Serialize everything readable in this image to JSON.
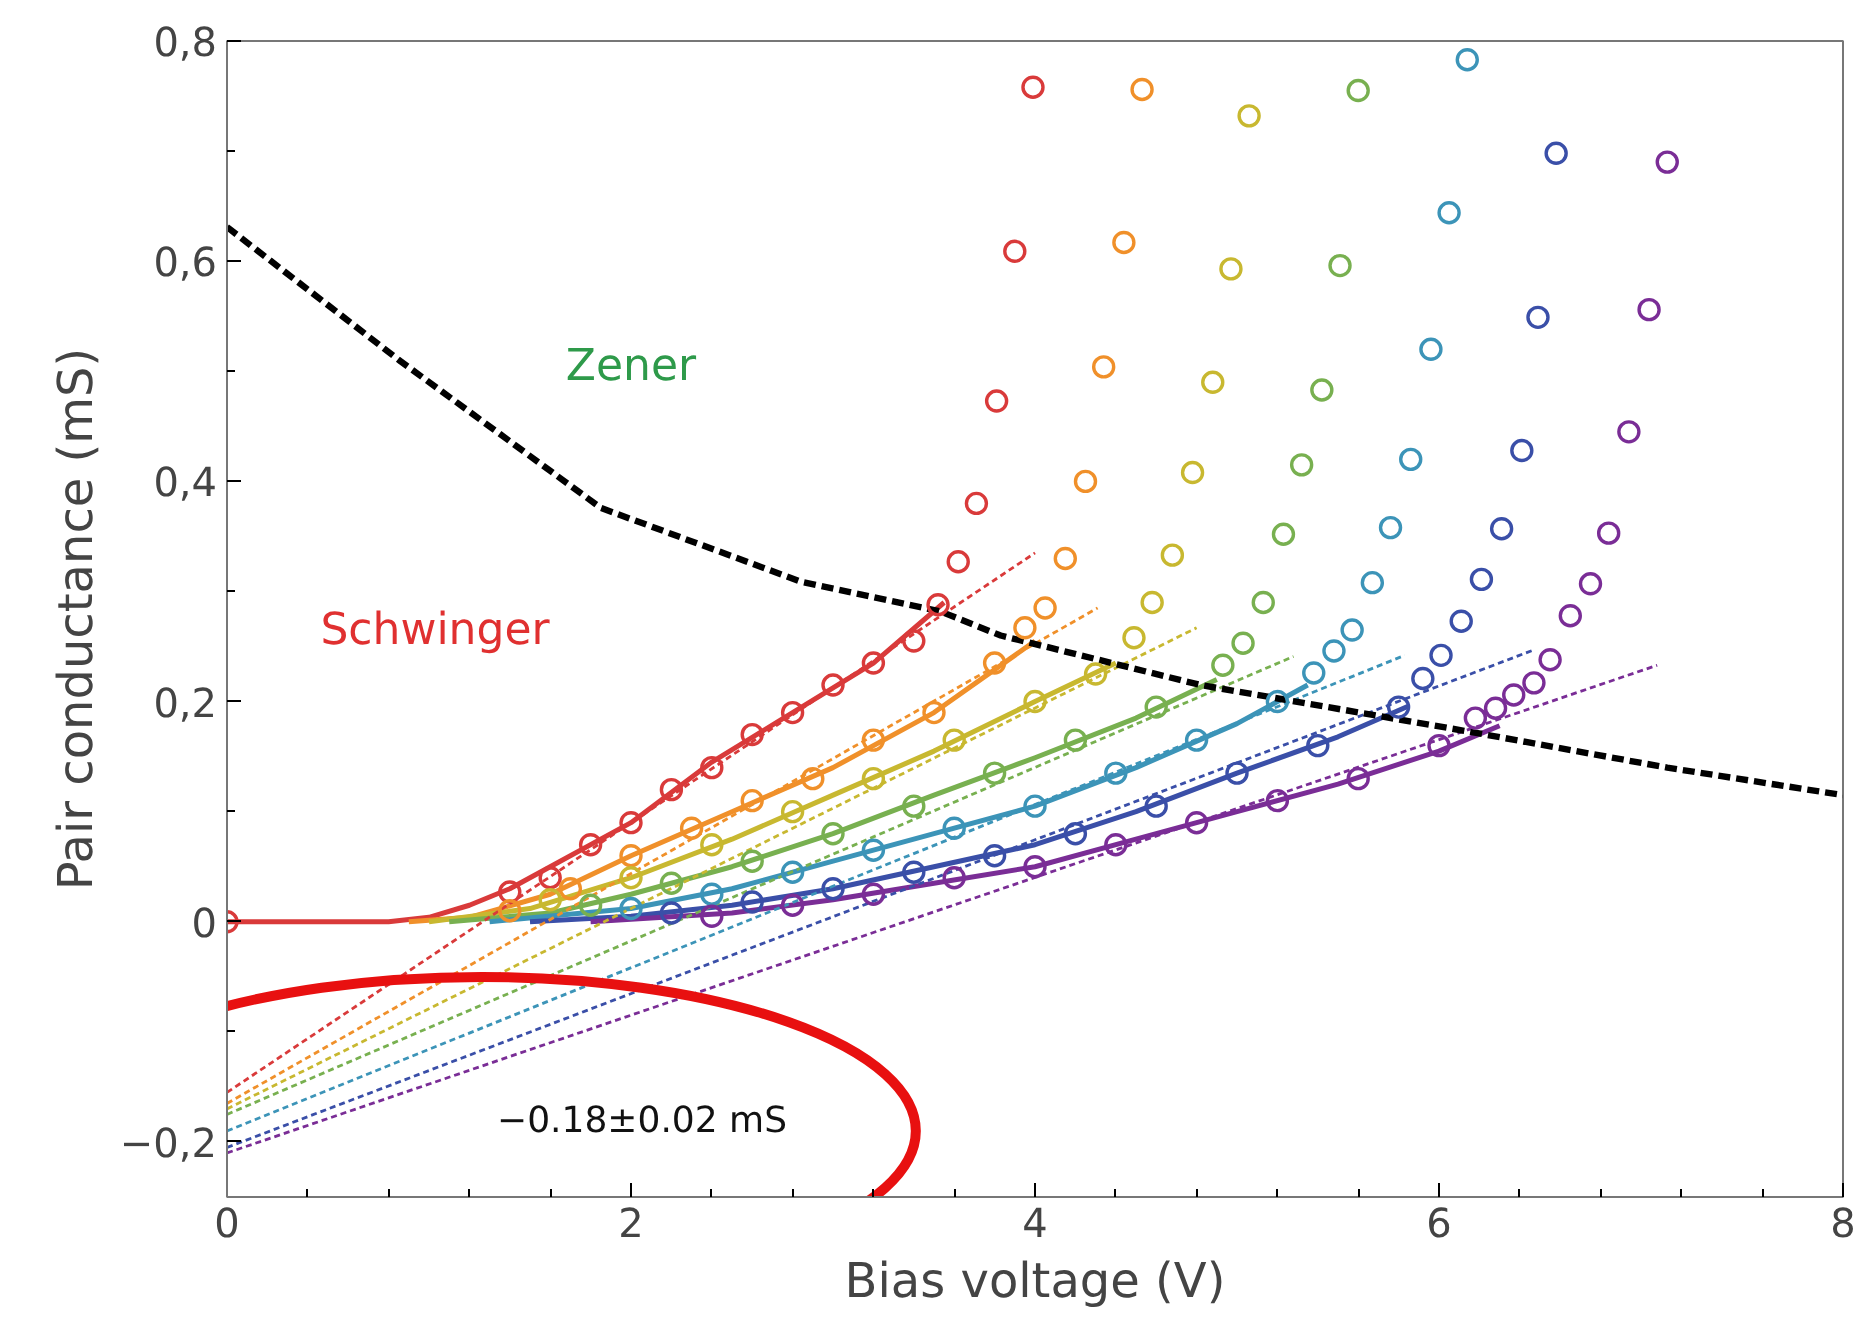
{
  "chart_data": {
    "type": "scatter",
    "xlabel": "Bias voltage (V)",
    "ylabel": "Pair conductance (mS)",
    "xlim": [
      0,
      8
    ],
    "ylim": [
      -0.25,
      0.8
    ],
    "xticks": [
      0,
      2,
      4,
      6,
      8
    ],
    "yticks": [
      {
        "value": -0.2,
        "label": "−0,2"
      },
      0,
      {
        "value": 0.2,
        "label": "0,2"
      },
      {
        "value": 0.4,
        "label": "0,4"
      },
      {
        "value": 0.6,
        "label": "0,6"
      },
      {
        "value": 0.8,
        "label": "0,8"
      }
    ],
    "marker": "circle",
    "annotations": [
      "Zener",
      "Schwinger",
      "−0.18±0.02 mS"
    ],
    "series": [
      {
        "color": "#d93a3a",
        "x": [
          0,
          1.4,
          1.6,
          1.8,
          2.0,
          2.2,
          2.4,
          2.6,
          2.8,
          3.0,
          3.2,
          3.4,
          3.52,
          3.62,
          3.71,
          3.81,
          3.9,
          3.99
        ],
        "values": [
          0,
          0.027,
          0.04,
          0.07,
          0.09,
          0.12,
          0.14,
          0.17,
          0.19,
          0.215,
          0.235,
          0.255,
          0.288,
          0.327,
          0.38,
          0.473,
          0.609,
          0.758
        ]
      },
      {
        "color": "#f0902a",
        "x": [
          1.4,
          1.7,
          2.0,
          2.3,
          2.6,
          2.9,
          3.2,
          3.5,
          3.8,
          3.95,
          4.05,
          4.15,
          4.25,
          4.34,
          4.44,
          4.53
        ],
        "values": [
          0.01,
          0.03,
          0.06,
          0.085,
          0.11,
          0.13,
          0.165,
          0.19,
          0.235,
          0.267,
          0.285,
          0.33,
          0.4,
          0.504,
          0.617,
          0.756
        ]
      },
      {
        "color": "#c8b830",
        "x": [
          1.6,
          2.0,
          2.4,
          2.8,
          3.2,
          3.6,
          4.0,
          4.3,
          4.49,
          4.58,
          4.68,
          4.78,
          4.88,
          4.97,
          5.06
        ],
        "values": [
          0.02,
          0.04,
          0.07,
          0.1,
          0.13,
          0.165,
          0.2,
          0.225,
          0.258,
          0.29,
          0.333,
          0.408,
          0.49,
          0.593,
          0.732
        ]
      },
      {
        "color": "#78b050",
        "x": [
          1.8,
          2.2,
          2.6,
          3.0,
          3.4,
          3.8,
          4.2,
          4.6,
          4.93,
          5.03,
          5.13,
          5.23,
          5.32,
          5.42,
          5.51,
          5.6
        ],
        "values": [
          0.015,
          0.035,
          0.055,
          0.08,
          0.105,
          0.135,
          0.165,
          0.195,
          0.233,
          0.253,
          0.29,
          0.352,
          0.415,
          0.483,
          0.596,
          0.755
        ]
      },
      {
        "color": "#3c94b8",
        "x": [
          2.0,
          2.4,
          2.8,
          3.2,
          3.6,
          4.0,
          4.4,
          4.8,
          5.2,
          5.38,
          5.48,
          5.57,
          5.67,
          5.76,
          5.86,
          5.96,
          6.05,
          6.14
        ],
        "values": [
          0.012,
          0.025,
          0.045,
          0.065,
          0.085,
          0.105,
          0.135,
          0.165,
          0.2,
          0.226,
          0.246,
          0.265,
          0.308,
          0.358,
          0.42,
          0.52,
          0.644,
          0.783
        ]
      },
      {
        "color": "#3a4fa8",
        "x": [
          2.2,
          2.6,
          3.0,
          3.4,
          3.8,
          4.2,
          4.6,
          5.0,
          5.4,
          5.8,
          5.92,
          6.01,
          6.11,
          6.21,
          6.31,
          6.41,
          6.49,
          6.58
        ],
        "values": [
          0.008,
          0.018,
          0.03,
          0.045,
          0.06,
          0.08,
          0.105,
          0.135,
          0.16,
          0.195,
          0.221,
          0.242,
          0.273,
          0.311,
          0.357,
          0.428,
          0.549,
          0.698
        ]
      },
      {
        "color": "#7a2d96",
        "x": [
          2.4,
          2.8,
          3.2,
          3.6,
          4.0,
          4.4,
          4.8,
          5.2,
          5.6,
          6.0,
          6.18,
          6.28,
          6.37,
          6.47,
          6.55,
          6.65,
          6.75,
          6.84,
          6.94,
          7.04,
          7.13
        ],
        "values": [
          0.005,
          0.015,
          0.025,
          0.04,
          0.05,
          0.07,
          0.09,
          0.11,
          0.13,
          0.16,
          0.185,
          0.194,
          0.206,
          0.217,
          0.238,
          0.278,
          0.307,
          0.353,
          0.445,
          0.556,
          0.69
        ]
      },
      {
        "type": "line",
        "line_style": "solid",
        "marker": "none",
        "color": "#d93a3a",
        "x": [
          0,
          0.8,
          1.0,
          1.2,
          1.4,
          1.6,
          2.0,
          2.4,
          2.8,
          3.2,
          3.55
        ],
        "values": [
          0,
          0,
          0.004,
          0.015,
          0.03,
          0.05,
          0.09,
          0.145,
          0.19,
          0.235,
          0.29
        ]
      },
      {
        "type": "line",
        "line_style": "solid",
        "marker": "none",
        "color": "#f0902a",
        "x": [
          0.9,
          1.2,
          1.6,
          2.0,
          2.5,
          3.0,
          3.5,
          4.0
        ],
        "values": [
          0,
          0.004,
          0.025,
          0.06,
          0.1,
          0.14,
          0.19,
          0.255
        ]
      },
      {
        "type": "line",
        "line_style": "solid",
        "marker": "none",
        "color": "#c8b830",
        "x": [
          1.0,
          1.5,
          2.0,
          2.5,
          3.0,
          3.5,
          4.0,
          4.4
        ],
        "values": [
          0,
          0.012,
          0.04,
          0.075,
          0.115,
          0.155,
          0.2,
          0.235
        ]
      },
      {
        "type": "line",
        "line_style": "solid",
        "marker": "none",
        "color": "#78b050",
        "x": [
          1.1,
          1.6,
          2.0,
          2.5,
          3.0,
          3.5,
          4.0,
          4.5,
          4.9
        ],
        "values": [
          0,
          0.008,
          0.025,
          0.05,
          0.08,
          0.115,
          0.149,
          0.185,
          0.22
        ]
      },
      {
        "type": "line",
        "line_style": "solid",
        "marker": "none",
        "color": "#3c94b8",
        "x": [
          1.3,
          2.0,
          2.5,
          3.0,
          3.5,
          4.0,
          4.5,
          5.0,
          5.35
        ],
        "values": [
          0,
          0.012,
          0.03,
          0.055,
          0.08,
          0.105,
          0.14,
          0.18,
          0.215
        ]
      },
      {
        "type": "line",
        "line_style": "solid",
        "marker": "none",
        "color": "#3a4fa8",
        "x": [
          1.5,
          2.0,
          2.5,
          3.0,
          3.5,
          4.0,
          4.5,
          5.0,
          5.5,
          5.85
        ],
        "values": [
          0,
          0.005,
          0.015,
          0.03,
          0.05,
          0.07,
          0.1,
          0.135,
          0.168,
          0.196
        ]
      },
      {
        "type": "line",
        "line_style": "solid",
        "marker": "none",
        "color": "#7a2d96",
        "x": [
          1.8,
          2.5,
          3.0,
          3.5,
          4.0,
          4.5,
          5.0,
          5.5,
          6.0,
          6.3
        ],
        "values": [
          0,
          0.008,
          0.02,
          0.035,
          0.05,
          0.075,
          0.1,
          0.125,
          0.155,
          0.178
        ]
      },
      {
        "type": "line",
        "line_style": "dotted",
        "marker": "none",
        "color": "#d93a3a",
        "x": [
          0,
          4.0
        ],
        "values": [
          -0.155,
          0.335
        ]
      },
      {
        "type": "line",
        "line_style": "dotted",
        "marker": "none",
        "color": "#f0902a",
        "x": [
          0,
          4.31
        ],
        "values": [
          -0.165,
          0.285
        ]
      },
      {
        "type": "line",
        "line_style": "dotted",
        "marker": "none",
        "color": "#c8b830",
        "x": [
          0,
          4.8
        ],
        "values": [
          -0.17,
          0.267
        ]
      },
      {
        "type": "line",
        "line_style": "dotted",
        "marker": "none",
        "color": "#78b050",
        "x": [
          0,
          5.28
        ],
        "values": [
          -0.175,
          0.241
        ]
      },
      {
        "type": "line",
        "line_style": "dotted",
        "marker": "none",
        "color": "#3c94b8",
        "x": [
          0,
          5.83
        ],
        "values": [
          -0.19,
          0.242
        ]
      },
      {
        "type": "line",
        "line_style": "dotted",
        "marker": "none",
        "color": "#3a4fa8",
        "x": [
          0,
          6.47
        ],
        "values": [
          -0.205,
          0.247
        ]
      },
      {
        "type": "line",
        "line_style": "dotted",
        "marker": "none",
        "color": "#7a2d96",
        "x": [
          0,
          7.08
        ],
        "values": [
          -0.21,
          0.233
        ]
      },
      {
        "type": "line",
        "line_style": "dashed",
        "marker": "none",
        "color": "#000000",
        "x": [
          0,
          0.86,
          1.85,
          2.84,
          3.53,
          3.83,
          4.82,
          6.14,
          7.13,
          8.0
        ],
        "values": [
          0.631,
          0.509,
          0.376,
          0.309,
          0.282,
          0.26,
          0.215,
          0.173,
          0.14,
          0.115
        ]
      }
    ]
  }
}
